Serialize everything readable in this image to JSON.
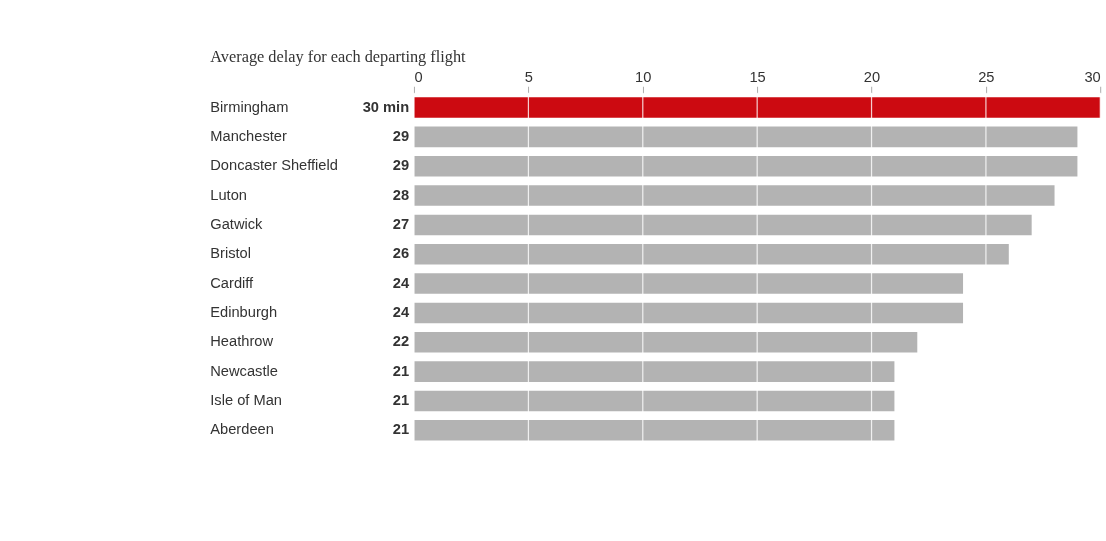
{
  "chart_data": {
    "type": "bar",
    "orientation": "horizontal",
    "title": "Average delay for each departing flight",
    "categories": [
      "Birmingham",
      "Manchester",
      "Doncaster Sheffield",
      "Luton",
      "Gatwick",
      "Bristol",
      "Cardiff",
      "Edinburgh",
      "Heathrow",
      "Newcastle",
      "Isle of Man",
      "Aberdeen"
    ],
    "values": [
      30,
      29,
      29,
      28,
      27,
      26,
      24,
      24,
      22,
      21,
      21,
      21
    ],
    "value_labels": [
      "30 min",
      "29",
      "29",
      "28",
      "27",
      "26",
      "24",
      "24",
      "22",
      "21",
      "21",
      "21"
    ],
    "colors": [
      "#cc0a11",
      "#b3b3b3",
      "#b3b3b3",
      "#b3b3b3",
      "#b3b3b3",
      "#b3b3b3",
      "#b3b3b3",
      "#b3b3b3",
      "#b3b3b3",
      "#b3b3b3",
      "#b3b3b3",
      "#b3b3b3"
    ],
    "xlim": [
      0,
      30
    ],
    "xticks": [
      0,
      5,
      10,
      15,
      20,
      25,
      30
    ],
    "grid": "x"
  }
}
